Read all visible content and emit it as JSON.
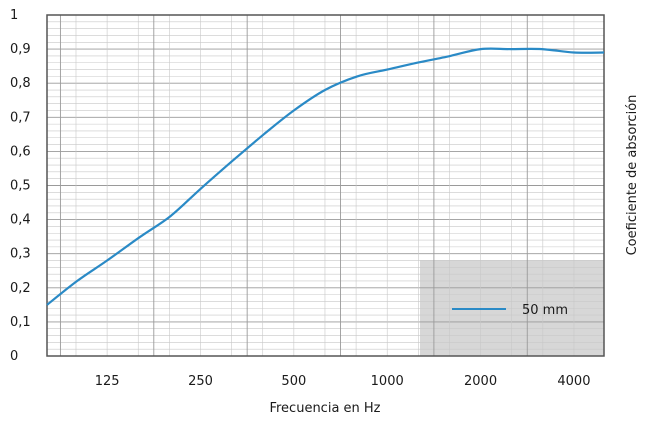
{
  "chart_data": {
    "type": "line",
    "title": "",
    "xlabel": "Frecuencia en Hz",
    "ylabel": "Coeficiente de absorción",
    "x_scale": "log",
    "xlim": [
      80,
      5000
    ],
    "ylim": [
      0,
      1
    ],
    "x_ticks": [
      125,
      250,
      500,
      1000,
      2000,
      4000
    ],
    "x_tick_labels": [
      "125",
      "250",
      "500",
      "1000",
      "2000",
      "4000"
    ],
    "y_ticks": [
      0,
      0.1,
      0.2,
      0.3,
      0.4,
      0.5,
      0.6,
      0.7,
      0.8,
      0.9,
      1
    ],
    "y_tick_labels": [
      "0",
      "0,1",
      "0,2",
      "0,3",
      "0,4",
      "0,5",
      "0,6",
      "0,7",
      "0,8",
      "0,9",
      "1"
    ],
    "grid": true,
    "legend_position": "bottom-right",
    "series": [
      {
        "name": "50 mm",
        "color": "#2a8ac6",
        "x": [
          80,
          100,
          125,
          160,
          200,
          250,
          315,
          400,
          500,
          630,
          800,
          1000,
          1250,
          1600,
          2000,
          2500,
          3150,
          4000,
          5000
        ],
        "y": [
          0.15,
          0.22,
          0.28,
          0.35,
          0.41,
          0.49,
          0.57,
          0.65,
          0.72,
          0.78,
          0.82,
          0.84,
          0.86,
          0.88,
          0.9,
          0.9,
          0.9,
          0.89,
          0.89
        ]
      }
    ]
  }
}
